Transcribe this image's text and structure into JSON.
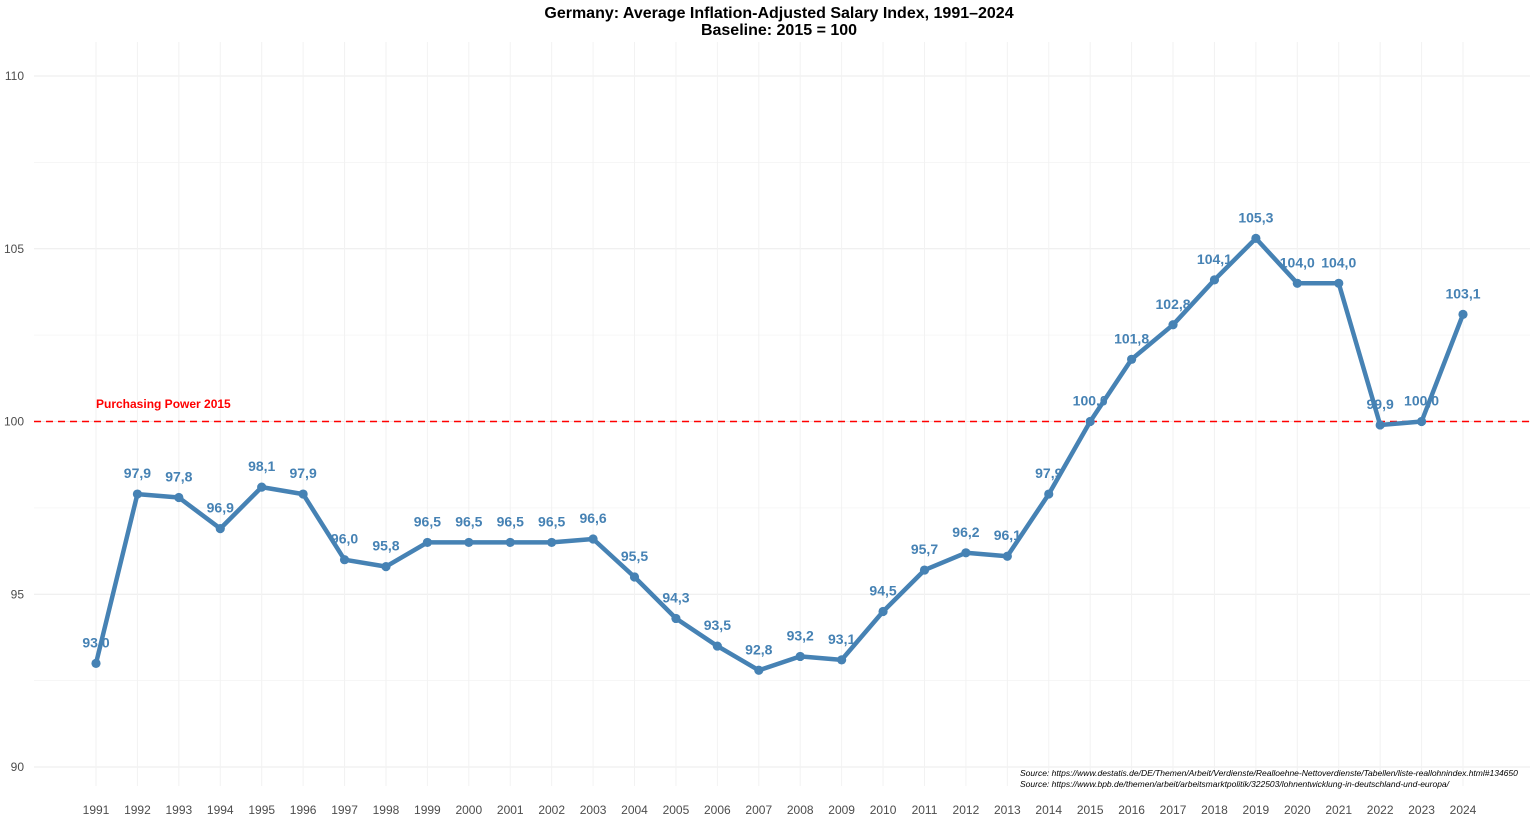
{
  "colors": {
    "line": "#4682b4",
    "reference": "#ff0000",
    "grid": "#ebebeb"
  },
  "chart_data": {
    "type": "line",
    "title": "Germany: Average Inflation-Adjusted Salary Index, 1991–2024",
    "subtitle": "Baseline: 2015 = 100",
    "xlabel": "",
    "ylabel": "",
    "ylim": [
      90,
      110
    ],
    "yticks": [
      90,
      95,
      100,
      105,
      110
    ],
    "grid": true,
    "legend": "none",
    "x": [
      1991,
      1992,
      1993,
      1994,
      1995,
      1996,
      1997,
      1998,
      1999,
      2000,
      2001,
      2002,
      2003,
      2004,
      2005,
      2006,
      2007,
      2008,
      2009,
      2010,
      2011,
      2012,
      2013,
      2014,
      2015,
      2016,
      2017,
      2018,
      2019,
      2020,
      2021,
      2022,
      2023,
      2024
    ],
    "values": [
      93.0,
      97.9,
      97.8,
      96.9,
      98.1,
      97.9,
      96.0,
      95.8,
      96.5,
      96.5,
      96.5,
      96.5,
      96.6,
      95.5,
      94.3,
      93.5,
      92.8,
      93.2,
      93.1,
      94.5,
      95.7,
      96.2,
      96.1,
      97.9,
      100.0,
      101.8,
      102.8,
      104.1,
      105.3,
      104.0,
      104.0,
      99.9,
      100.0,
      103.1
    ],
    "data_labels": [
      "93,0",
      "97,9",
      "97,8",
      "96,9",
      "98,1",
      "97,9",
      "96,0",
      "95,8",
      "96,5",
      "96,5",
      "96,5",
      "96,5",
      "96,6",
      "95,5",
      "94,3",
      "93,5",
      "92,8",
      "93,2",
      "93,1",
      "94,5",
      "95,7",
      "96,2",
      "96,1",
      "97,9",
      "100,0",
      "101,8",
      "102,8",
      "104,1",
      "105,3",
      "104,0",
      "104,0",
      "99,9",
      "100,0",
      "103,1"
    ],
    "reference_line": {
      "y": 100,
      "style": "dashed",
      "label": "Purchasing Power 2015"
    },
    "sources": [
      "Source: https://www.destatis.de/DE/Themen/Arbeit/Verdienste/Realloehne-Nettoverdienste/Tabellen/liste-reallohnindex.html#134650",
      "Source: https://www.bpb.de/themen/arbeit/arbeitsmarktpolitik/322503/lohnentwicklung-in-deutschland-und-europa/"
    ]
  }
}
